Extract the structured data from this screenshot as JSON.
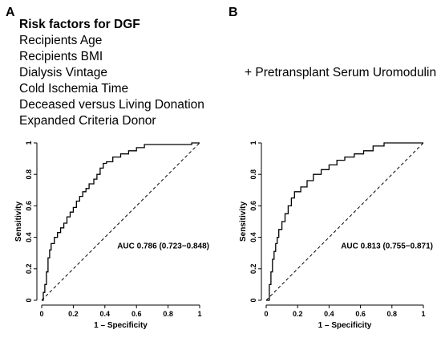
{
  "panel_a": {
    "letter": "A",
    "heading": "Risk factors for DGF",
    "factors": [
      "Recipients Age",
      "Recipients BMI",
      "Dialysis Vintage",
      "Cold Ischemia Time",
      "Deceased versus Living Donation",
      "Expanded Criteria Donor"
    ]
  },
  "panel_b": {
    "letter": "B",
    "addition": "+ Pretransplant Serum Uromodulin"
  },
  "chart_data": [
    {
      "type": "line",
      "panel": "A",
      "xlabel": "1 – Specificity",
      "ylabel": "Sensitivity",
      "xlim": [
        0,
        1
      ],
      "ylim": [
        0,
        1
      ],
      "x_ticks": [
        "0",
        "0.2",
        "0.4",
        "0.6",
        "0.8",
        "1"
      ],
      "y_ticks": [
        "0",
        "0.2",
        "0.4",
        "0.6",
        "0.8",
        "1"
      ],
      "annotation": "AUC 0.786 (0.723−0.848)",
      "reference_line": [
        [
          0,
          0
        ],
        [
          1,
          1
        ]
      ],
      "series": [
        {
          "x": [
            0,
            0.01,
            0.01,
            0.02,
            0.02,
            0.03,
            0.03,
            0.04,
            0.04,
            0.05,
            0.05,
            0.06,
            0.06,
            0.08,
            0.08,
            0.1,
            0.1,
            0.12,
            0.12,
            0.14,
            0.14,
            0.16,
            0.16,
            0.18,
            0.18,
            0.2,
            0.2,
            0.22,
            0.22,
            0.24,
            0.24,
            0.26,
            0.26,
            0.28,
            0.28,
            0.3,
            0.3,
            0.33,
            0.33,
            0.35,
            0.35,
            0.37,
            0.37,
            0.39,
            0.39,
            0.41,
            0.41,
            0.45,
            0.45,
            0.5,
            0.5,
            0.55,
            0.55,
            0.6,
            0.6,
            0.65,
            0.65,
            0.7,
            0.7,
            0.95,
            0.95,
            1.0
          ],
          "y": [
            0,
            0,
            0.05,
            0.05,
            0.1,
            0.1,
            0.18,
            0.18,
            0.27,
            0.27,
            0.32,
            0.32,
            0.36,
            0.36,
            0.4,
            0.4,
            0.43,
            0.43,
            0.46,
            0.46,
            0.49,
            0.49,
            0.53,
            0.53,
            0.56,
            0.56,
            0.59,
            0.59,
            0.63,
            0.63,
            0.66,
            0.66,
            0.69,
            0.69,
            0.71,
            0.71,
            0.74,
            0.74,
            0.77,
            0.77,
            0.8,
            0.8,
            0.84,
            0.84,
            0.87,
            0.87,
            0.88,
            0.88,
            0.91,
            0.91,
            0.93,
            0.93,
            0.95,
            0.95,
            0.97,
            0.97,
            0.99,
            0.99,
            0.99,
            0.99,
            1.0,
            1.0
          ]
        }
      ]
    },
    {
      "type": "line",
      "panel": "B",
      "xlabel": "1 – Specificity",
      "ylabel": "Sensitivity",
      "xlim": [
        0,
        1
      ],
      "ylim": [
        0,
        1
      ],
      "x_ticks": [
        "0",
        "0.2",
        "0.4",
        "0.6",
        "0.8",
        "1"
      ],
      "y_ticks": [
        "0",
        "0.2",
        "0.4",
        "0.6",
        "0.8",
        "1"
      ],
      "annotation": "AUC 0.813 (0.755−0.871)",
      "reference_line": [
        [
          0,
          0
        ],
        [
          1,
          1
        ]
      ],
      "series": [
        {
          "x": [
            0,
            0.02,
            0.02,
            0.03,
            0.03,
            0.04,
            0.04,
            0.05,
            0.05,
            0.06,
            0.06,
            0.07,
            0.07,
            0.08,
            0.08,
            0.1,
            0.1,
            0.12,
            0.12,
            0.14,
            0.14,
            0.16,
            0.16,
            0.18,
            0.18,
            0.22,
            0.22,
            0.26,
            0.26,
            0.3,
            0.3,
            0.35,
            0.35,
            0.4,
            0.4,
            0.45,
            0.45,
            0.5,
            0.5,
            0.56,
            0.56,
            0.62,
            0.62,
            0.68,
            0.68,
            0.75,
            0.75,
            1.0
          ],
          "y": [
            0,
            0,
            0.1,
            0.1,
            0.18,
            0.18,
            0.26,
            0.26,
            0.31,
            0.31,
            0.36,
            0.36,
            0.4,
            0.4,
            0.45,
            0.45,
            0.5,
            0.5,
            0.55,
            0.55,
            0.6,
            0.6,
            0.65,
            0.65,
            0.69,
            0.69,
            0.72,
            0.72,
            0.76,
            0.76,
            0.8,
            0.8,
            0.83,
            0.83,
            0.86,
            0.86,
            0.89,
            0.89,
            0.91,
            0.91,
            0.93,
            0.93,
            0.95,
            0.95,
            0.98,
            0.98,
            1.0,
            1.0
          ]
        }
      ]
    }
  ]
}
